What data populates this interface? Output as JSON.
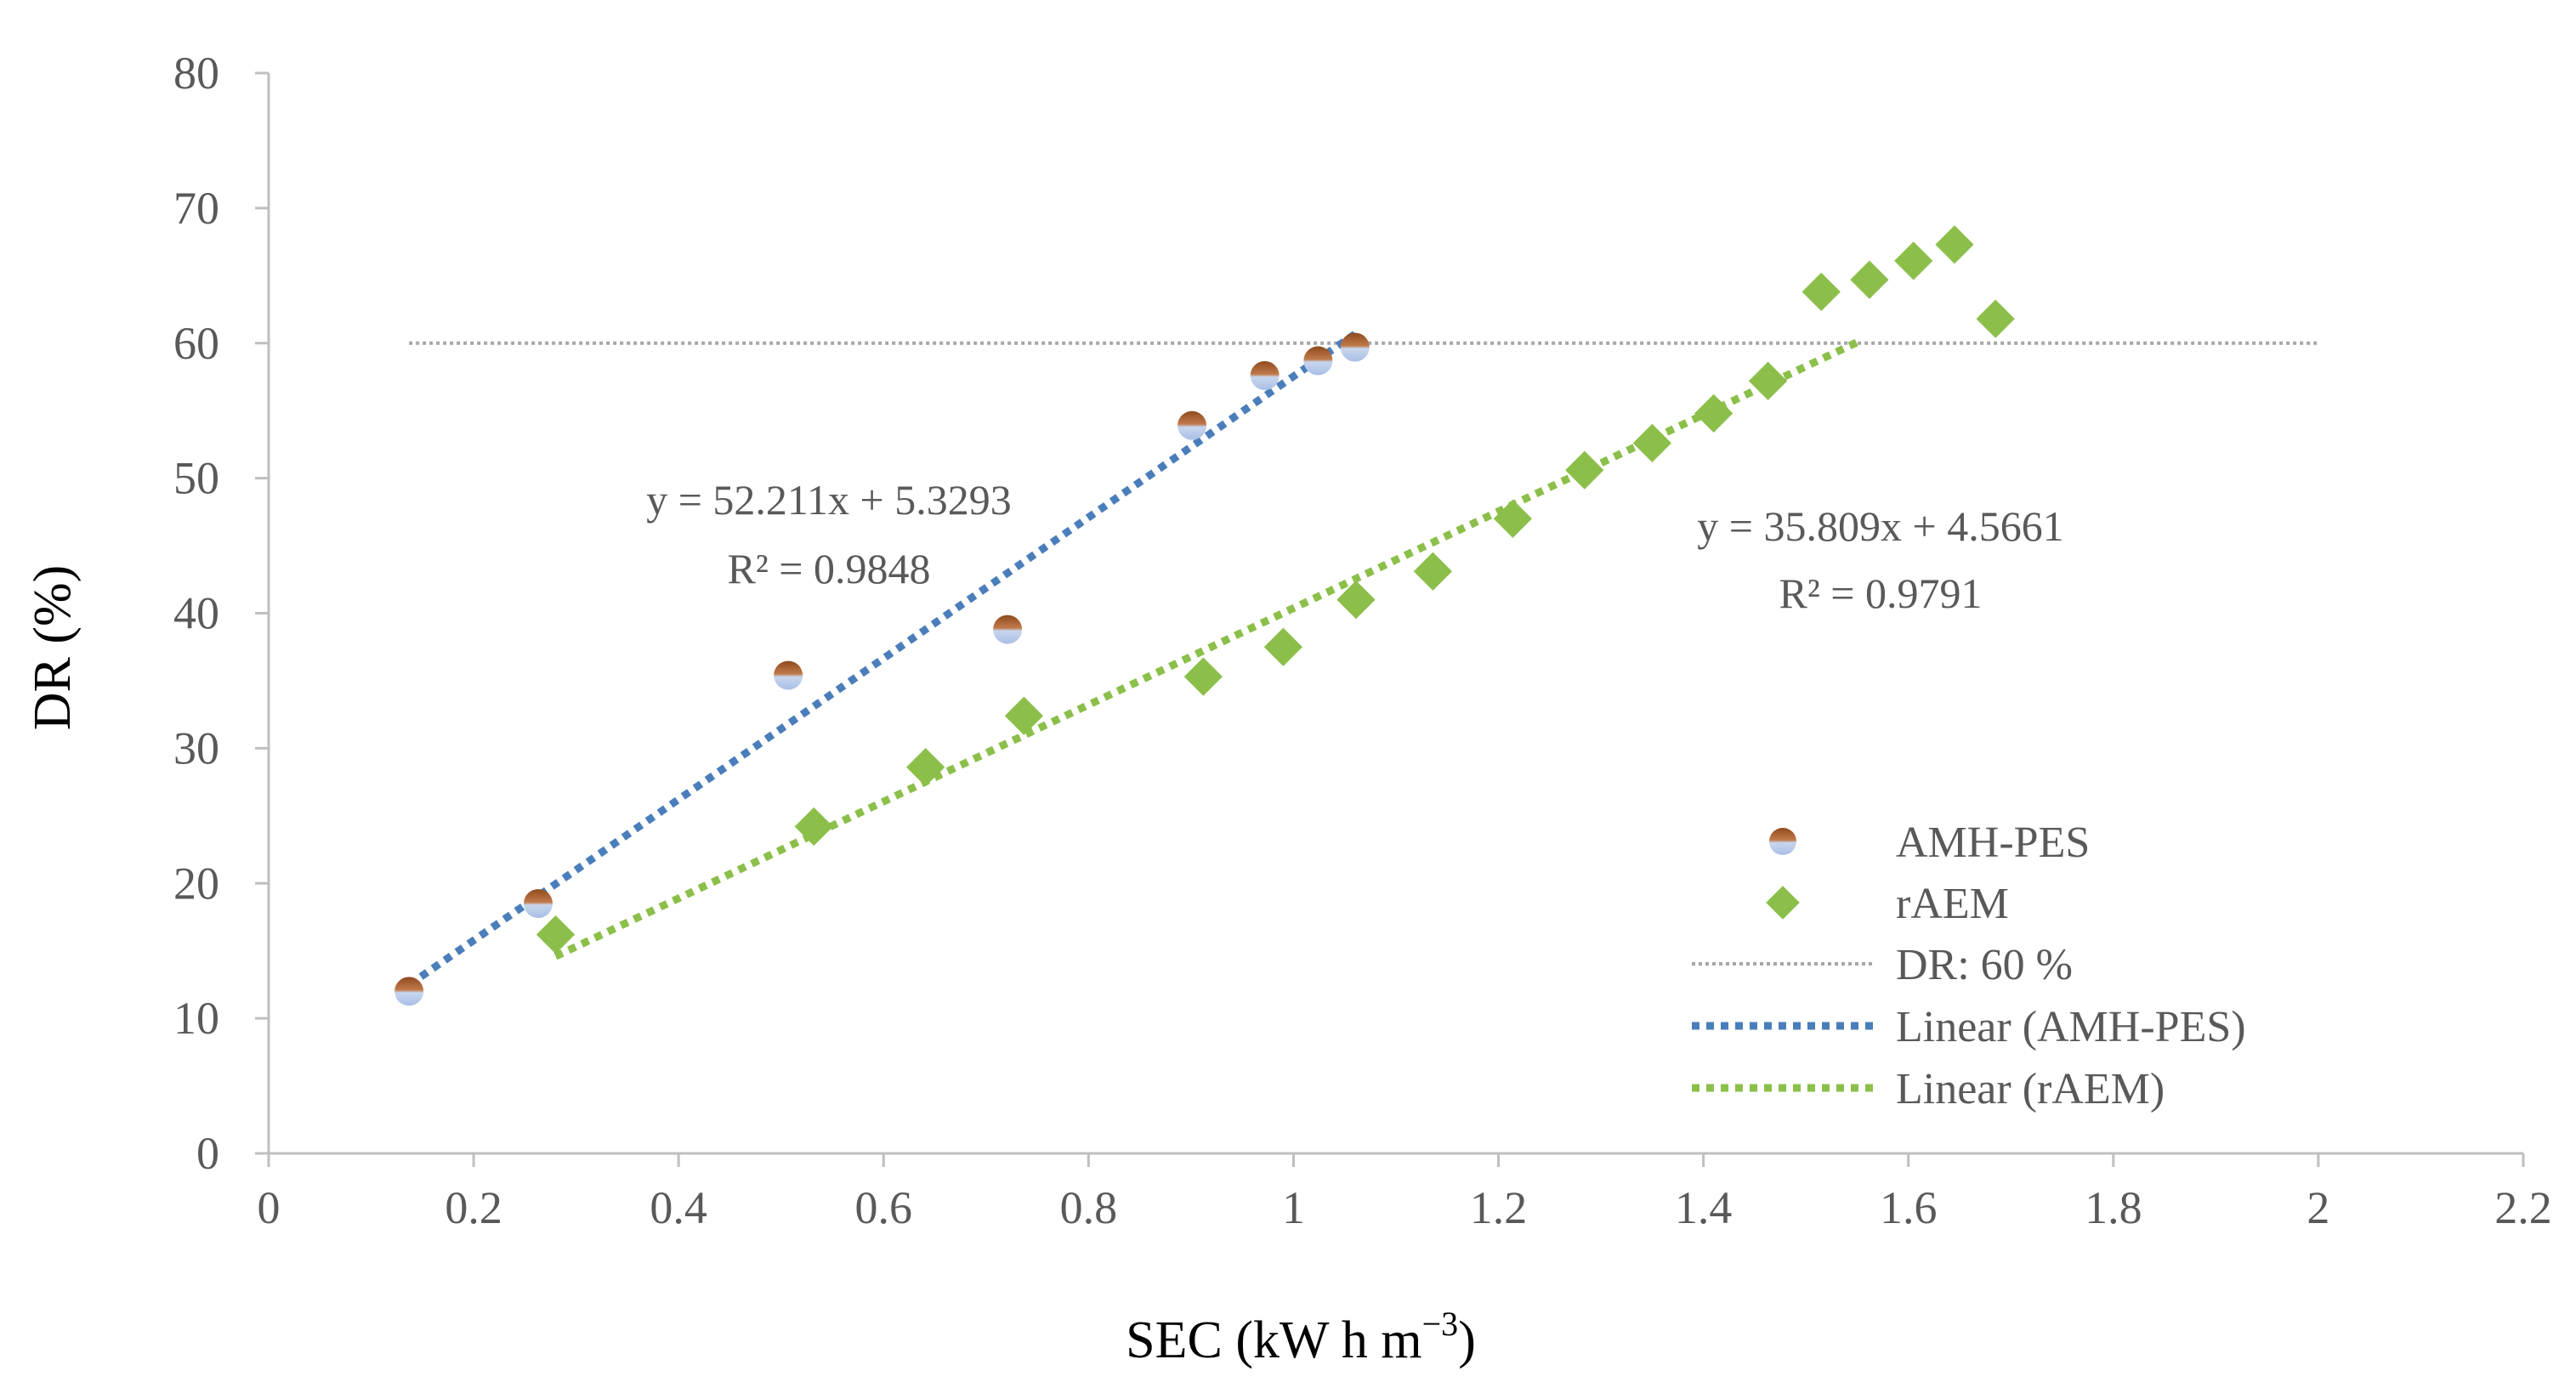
{
  "chart_data": {
    "type": "scatter",
    "xlabel": "SEC (kW h m",
    "xlabel_sup": "−3",
    "xlabel_close": ")",
    "ylabel": "DR (%)",
    "xlim": [
      0,
      2.2
    ],
    "ylim": [
      0,
      80
    ],
    "x_ticks": [
      "0",
      "0.2",
      "0.4",
      "0.6",
      "0.8",
      "1",
      "1.2",
      "1.4",
      "1.6",
      "1.8",
      "2",
      "2.2"
    ],
    "y_ticks": [
      "0",
      "10",
      "20",
      "30",
      "40",
      "50",
      "60",
      "70",
      "80"
    ],
    "grid": false,
    "legend_position": "right-bottom",
    "colors": {
      "amh_dot_top": "#a0582a",
      "amh_dot_bottom": "#b9cbe8",
      "raem": "#8cbf4a",
      "linear_amh": "#4a7ebb",
      "linear_raem": "#8cbf4a",
      "dr_line": "#a6a6a6",
      "axis": "#bfbfbf"
    },
    "series": [
      {
        "name": "AMH-PES",
        "marker": "circle",
        "x": [
          0.137,
          0.263,
          0.507,
          0.721,
          0.901,
          0.972,
          1.024,
          1.06
        ],
        "y": [
          12.0,
          18.5,
          35.4,
          38.8,
          53.9,
          57.6,
          58.7,
          59.7
        ]
      },
      {
        "name": "rAEM",
        "marker": "diamond",
        "x": [
          0.28,
          0.532,
          0.641,
          0.737,
          0.912,
          0.99,
          1.061,
          1.136,
          1.214,
          1.284,
          1.35,
          1.41,
          1.463,
          1.515,
          1.562,
          1.605,
          1.645,
          1.685
        ],
        "y": [
          16.2,
          24.2,
          28.6,
          32.4,
          35.3,
          37.5,
          41.0,
          43.1,
          47.0,
          50.6,
          52.6,
          54.8,
          57.2,
          63.8,
          64.7,
          66.1,
          67.3,
          61.8
        ]
      }
    ],
    "reference_line": {
      "name": "DR: 60 %",
      "y": 60,
      "x_start": 0.137,
      "x_end": 2.0
    },
    "trendlines": [
      {
        "name": "Linear (AMH-PES)",
        "slope": 52.211,
        "intercept": 5.3293,
        "x_start": 0.137,
        "x_end": 1.06,
        "equation": "y = 52.211x + 5.3293",
        "r2": "R² = 0.9848"
      },
      {
        "name": "Linear (rAEM)",
        "slope": 35.809,
        "intercept": 4.5661,
        "x_start": 0.28,
        "x_end": 1.55,
        "equation": "y = 35.809x + 4.5661",
        "r2": "R² = 0.9791"
      }
    ],
    "legend": [
      "AMH-PES",
      "rAEM",
      "DR: 60 %",
      "Linear (AMH-PES)",
      "Linear (rAEM)"
    ]
  }
}
